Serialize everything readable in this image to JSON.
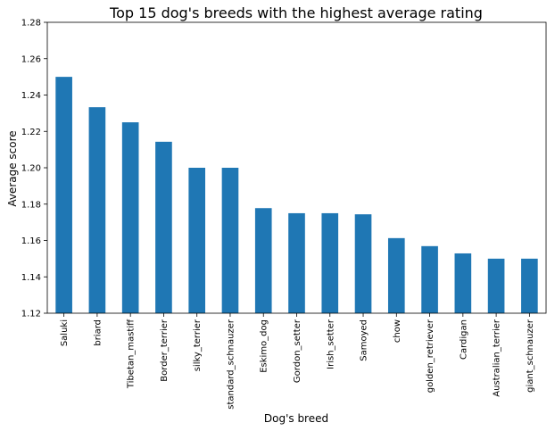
{
  "chart_data": {
    "type": "bar",
    "title": "Top 15 dog's breeds with the highest average rating",
    "xlabel": "Dog's breed",
    "ylabel": "Average score",
    "categories": [
      "Saluki",
      "briard",
      "Tibetan_mastiff",
      "Border_terrier",
      "silky_terrier",
      "standard_schnauzer",
      "Eskimo_dog",
      "Gordon_setter",
      "Irish_setter",
      "Samoyed",
      "chow",
      "golden_retriever",
      "Cardigan",
      "Australian_terrier",
      "giant_schnauzer"
    ],
    "values": [
      1.25,
      1.2333,
      1.225,
      1.2143,
      1.2,
      1.2,
      1.1778,
      1.175,
      1.175,
      1.1744,
      1.1613,
      1.1569,
      1.1529,
      1.15,
      1.15
    ],
    "ylim": [
      1.12,
      1.28
    ],
    "yticks": [
      "1.12",
      "1.14",
      "1.16",
      "1.18",
      "1.20",
      "1.22",
      "1.24",
      "1.26",
      "1.28"
    ],
    "grid": false,
    "legend": "none",
    "bar_color": "#1f77b4"
  }
}
